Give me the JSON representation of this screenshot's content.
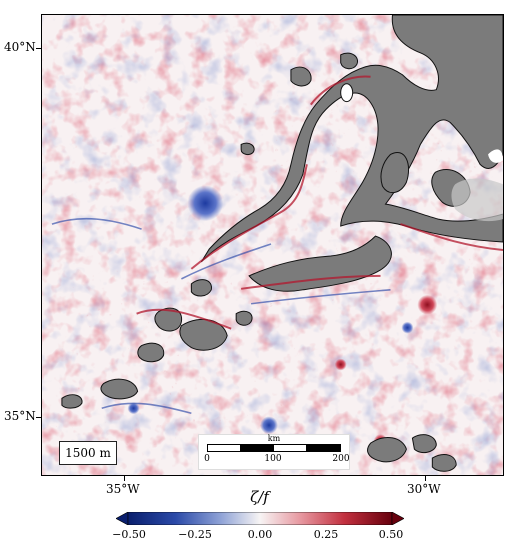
{
  "map": {
    "lat_labels": [
      "40°N",
      "35°N"
    ],
    "lon_labels": [
      "35°W",
      "30°W"
    ],
    "depth_label": "1500 m",
    "scale_bar": {
      "unit": "km",
      "ticks": [
        "0",
        "100",
        "200"
      ]
    },
    "colors": {
      "negative": "#2a3f97",
      "neutral": "#f7f4f4",
      "positive": "#b2182b",
      "land_mask": "#7a7a7a",
      "land_outline": "#111111"
    }
  },
  "colorbar": {
    "variable_label": "ζ/f",
    "ticks": [
      "−0.50",
      "−0.25",
      "0.00",
      "0.25",
      "0.50"
    ],
    "min": -0.5,
    "max": 0.5,
    "extend": "both",
    "colormap": "diverging blue-white-red"
  }
}
